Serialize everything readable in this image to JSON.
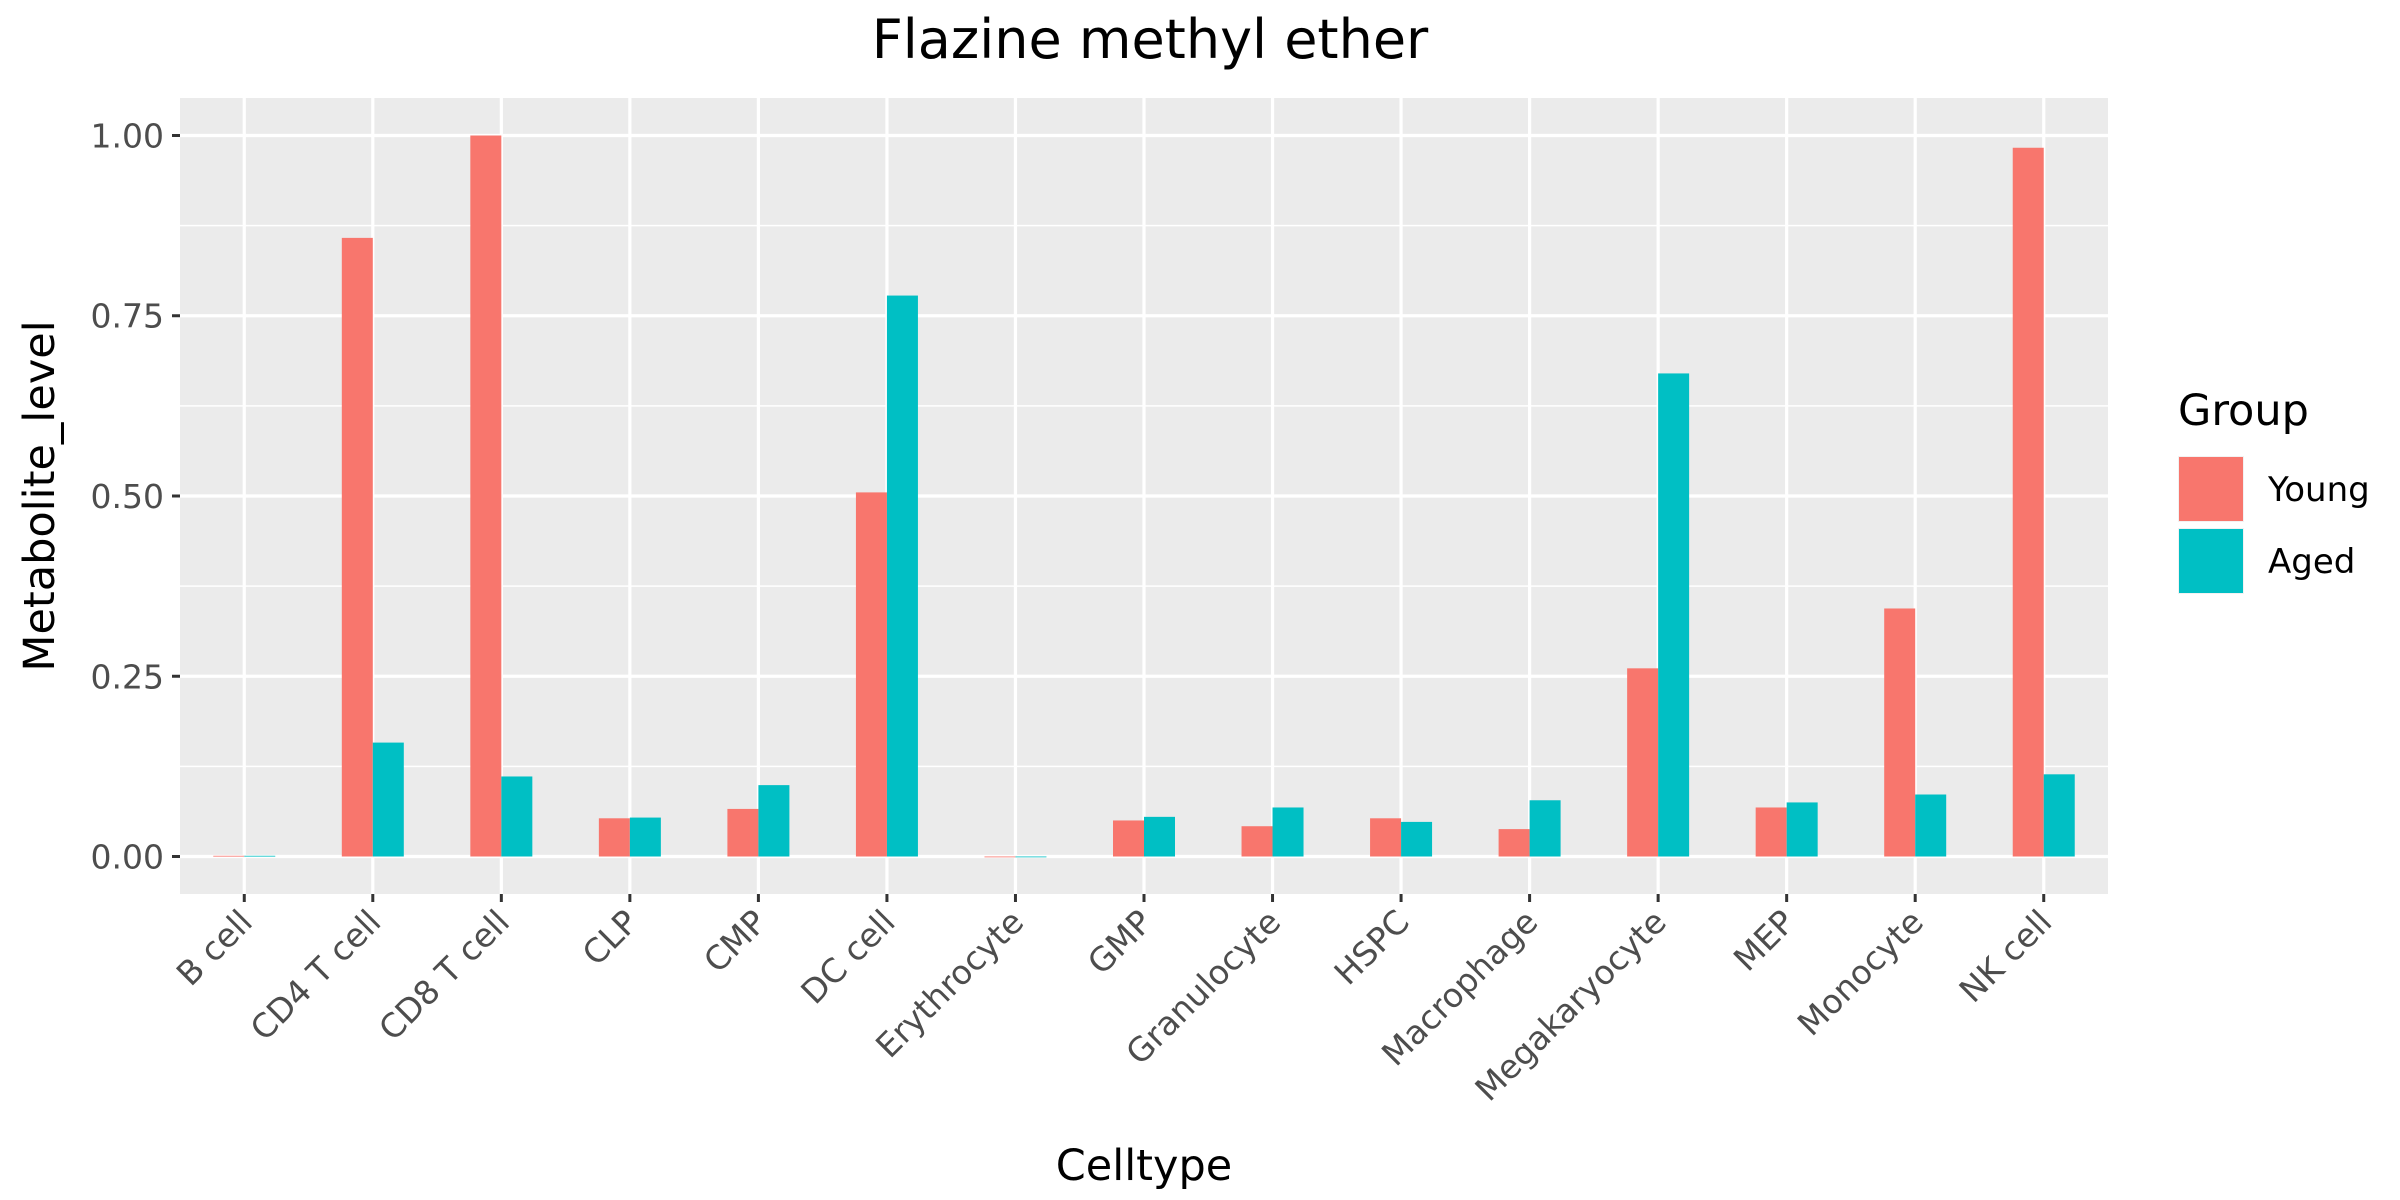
{
  "chart_data": {
    "type": "bar",
    "title": "Flazine methyl ether",
    "xlabel": "Celltype",
    "ylabel": "Metabolite_level",
    "categories": [
      "B cell",
      "CD4 T cell",
      "CD8 T cell",
      "CLP",
      "CMP",
      "DC cell",
      "Erythrocyte",
      "GMP",
      "Granulocyte",
      "HSPC",
      "Macrophage",
      "Megakaryocyte",
      "MEP",
      "Monocyte",
      "NK cell"
    ],
    "series": [
      {
        "name": "Young",
        "color": "#F8766D",
        "values": [
          0.001,
          0.858,
          1.0,
          0.053,
          0.066,
          0.505,
          0.0,
          0.05,
          0.042,
          0.053,
          0.038,
          0.261,
          0.068,
          0.344,
          0.983
        ]
      },
      {
        "name": "Aged",
        "color": "#00BFC4",
        "values": [
          0.001,
          0.158,
          0.111,
          0.054,
          0.099,
          0.778,
          0.0,
          0.055,
          0.068,
          0.048,
          0.078,
          0.67,
          0.075,
          0.086,
          0.114
        ]
      }
    ],
    "ylim": [
      -0.052,
      1.052
    ],
    "yticks": [
      0.0,
      0.25,
      0.5,
      0.75,
      1.0
    ],
    "ytick_labels": [
      "0.00",
      "0.25",
      "0.50",
      "0.75",
      "1.00"
    ],
    "grid": true,
    "panel_background": "#EBEBEB",
    "legend": {
      "title": "Group",
      "position": "right"
    }
  }
}
